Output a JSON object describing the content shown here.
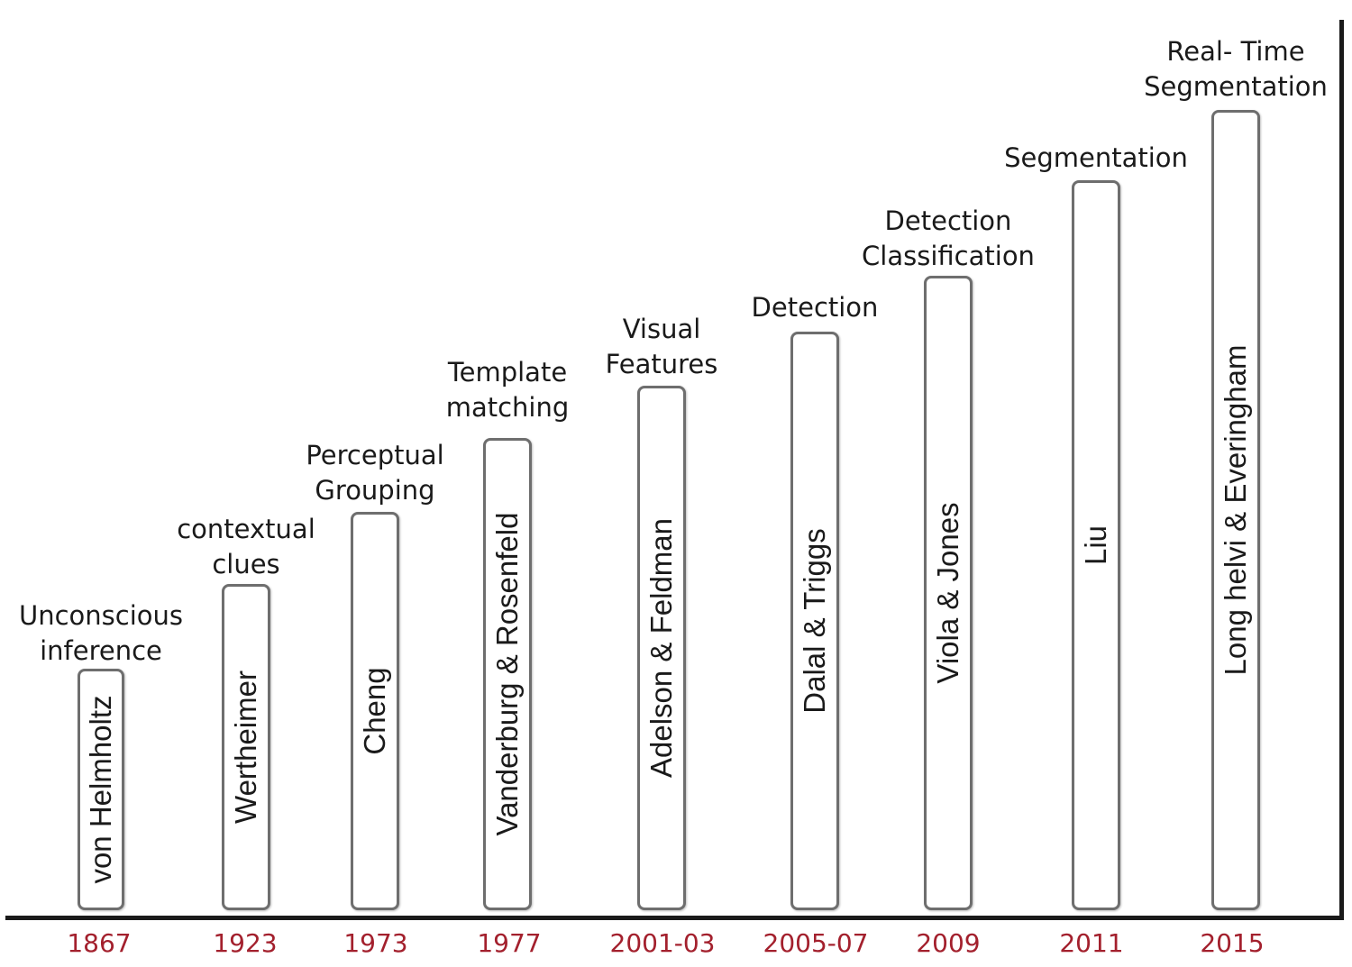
{
  "timeline": [
    {
      "year": "1867",
      "author": "von Helmholtz",
      "topic": [
        "Unconscious",
        "inference"
      ]
    },
    {
      "year": "1923",
      "author": "Wertheimer",
      "topic": [
        "contextual",
        "clues"
      ]
    },
    {
      "year": "1973",
      "author": "Cheng",
      "topic": [
        "Perceptual",
        "Grouping"
      ]
    },
    {
      "year": "1977",
      "author": "Vanderburg & Rosenfeld",
      "topic": [
        "Template",
        "matching"
      ]
    },
    {
      "year": "2001-03",
      "author": "Adelson & Feldman",
      "topic": [
        "Visual",
        "Features"
      ]
    },
    {
      "year": "2005-07",
      "author": "Dalal & Triggs",
      "topic": [
        "Detection"
      ]
    },
    {
      "year": "2009",
      "author": "Viola & Jones",
      "topic": [
        "Detection",
        "Classification"
      ]
    },
    {
      "year": "2011",
      "author": "Liu",
      "topic": [
        "Segmentation"
      ]
    },
    {
      "year": "2015",
      "author": "Long helvi & Everingham",
      "topic": [
        "Real- Time",
        "Segmentation"
      ]
    }
  ],
  "colors": {
    "year_text": "#a3202d",
    "bar_border": "#6e6e6e",
    "axis": "#1a1a1a"
  }
}
